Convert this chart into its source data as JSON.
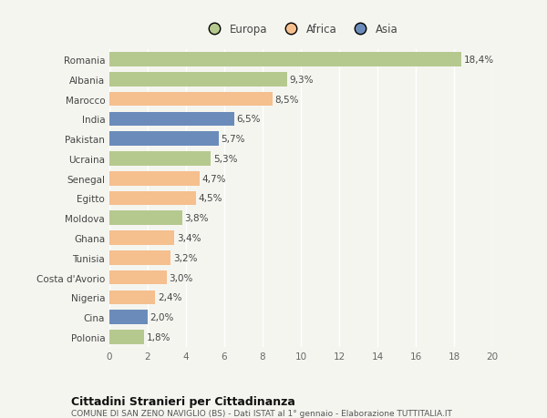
{
  "countries": [
    "Romania",
    "Albania",
    "Marocco",
    "India",
    "Pakistan",
    "Ucraina",
    "Senegal",
    "Egitto",
    "Moldova",
    "Ghana",
    "Tunisia",
    "Costa d'Avorio",
    "Nigeria",
    "Cina",
    "Polonia"
  ],
  "values": [
    18.4,
    9.3,
    8.5,
    6.5,
    5.7,
    5.3,
    4.7,
    4.5,
    3.8,
    3.4,
    3.2,
    3.0,
    2.4,
    2.0,
    1.8
  ],
  "labels": [
    "18,4%",
    "9,3%",
    "8,5%",
    "6,5%",
    "5,7%",
    "5,3%",
    "4,7%",
    "4,5%",
    "3,8%",
    "3,4%",
    "3,2%",
    "3,0%",
    "2,4%",
    "2,0%",
    "1,8%"
  ],
  "continents": [
    "Europa",
    "Europa",
    "Africa",
    "Asia",
    "Asia",
    "Europa",
    "Africa",
    "Africa",
    "Europa",
    "Africa",
    "Africa",
    "Africa",
    "Africa",
    "Asia",
    "Europa"
  ],
  "colors": {
    "Europa": "#b5c98e",
    "Africa": "#f5bf8e",
    "Asia": "#6b8cba"
  },
  "legend_labels": [
    "Europa",
    "Africa",
    "Asia"
  ],
  "legend_colors": [
    "#b5c98e",
    "#f5bf8e",
    "#6b8cba"
  ],
  "xlim": [
    0,
    20
  ],
  "xticks": [
    0,
    2,
    4,
    6,
    8,
    10,
    12,
    14,
    16,
    18,
    20
  ],
  "title": "Cittadini Stranieri per Cittadinanza",
  "subtitle": "COMUNE DI SAN ZENO NAVIGLIO (BS) - Dati ISTAT al 1° gennaio - Elaborazione TUTTITALIA.IT",
  "bg_color": "#f5f5f0",
  "bar_height": 0.72,
  "label_fontsize": 7.5,
  "ytick_fontsize": 7.5,
  "xtick_fontsize": 7.5
}
